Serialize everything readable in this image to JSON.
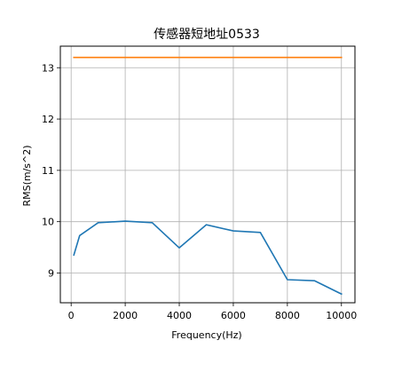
{
  "chart_data": {
    "type": "line",
    "title": "传感器短地址0533",
    "xlabel": "Frequency(Hz)",
    "ylabel": "RMS(m/s^2)",
    "xlim": [
      -400,
      10500
    ],
    "ylim": [
      8.42,
      13.42
    ],
    "xticks": [
      0,
      2000,
      4000,
      6000,
      8000,
      10000
    ],
    "yticks": [
      9,
      10,
      11,
      12,
      13
    ],
    "grid": true,
    "series": [
      {
        "color": "#1f77b4",
        "x": [
          100,
          315,
          1000,
          2000,
          3000,
          4000,
          5000,
          6000,
          7000,
          8000,
          9000,
          10000
        ],
        "y": [
          9.35,
          9.73,
          9.98,
          10.01,
          9.98,
          9.49,
          9.94,
          9.82,
          9.79,
          8.87,
          8.85,
          8.59
        ]
      },
      {
        "color": "#ff7f0e",
        "x": [
          100,
          10000
        ],
        "y": [
          13.2,
          13.2
        ]
      }
    ]
  }
}
